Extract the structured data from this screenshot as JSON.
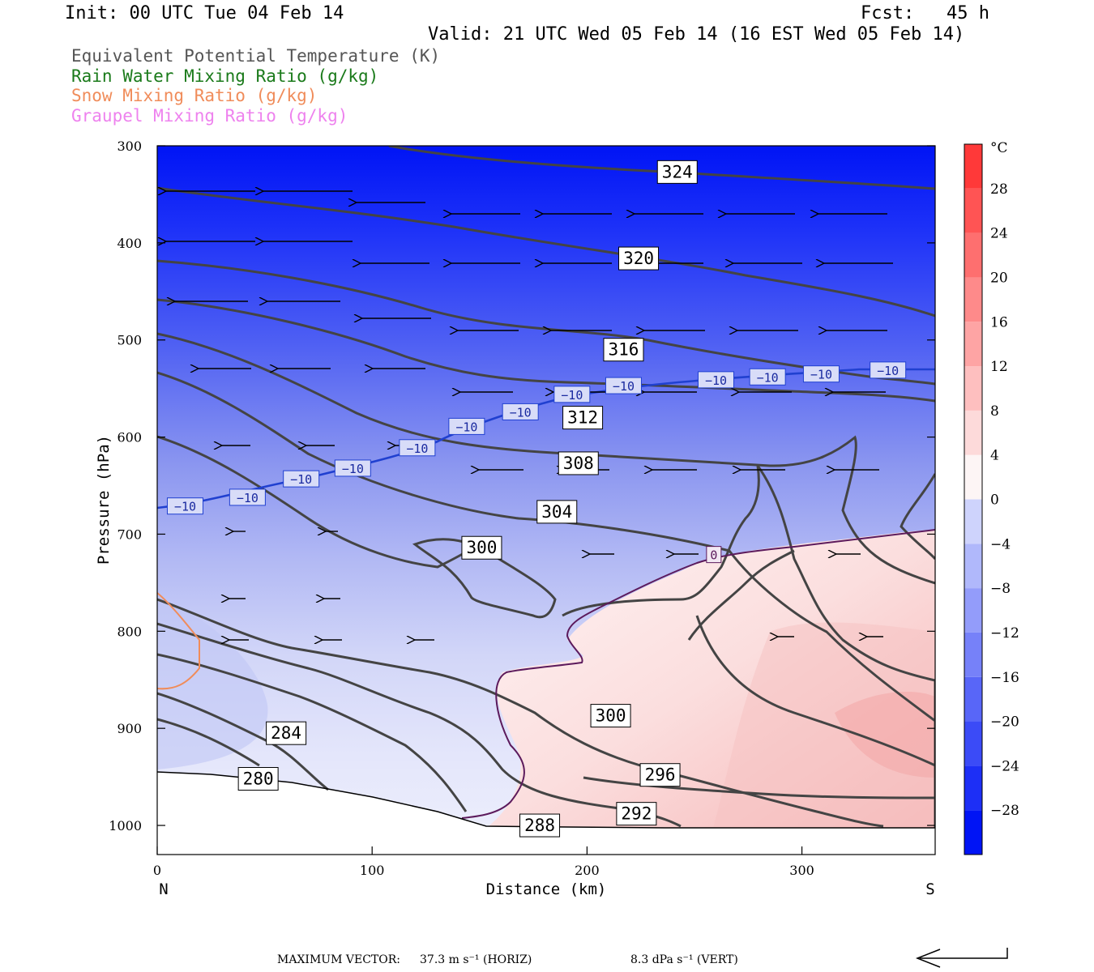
{
  "header": {
    "init": "Init: 00 UTC Tue 04 Feb 14",
    "fcst": "Fcst:   45 h",
    "valid": "Valid: 21 UTC Wed 05 Feb 14 (16 EST Wed 05 Feb 14)"
  },
  "legend": [
    {
      "label": "Equivalent Potential Temperature (K)",
      "color": "#555555"
    },
    {
      "label": "Rain Water Mixing Ratio (g/kg)",
      "color": "#1a7a1a"
    },
    {
      "label": "Snow Mixing Ratio (g/kg)",
      "color": "#f08c5a"
    },
    {
      "label": "Graupel Mixing Ratio (g/kg)",
      "color": "#ee82ee"
    }
  ],
  "chart_data": {
    "type": "cross-section",
    "xlabel": "Distance (km)",
    "ylabel": "Pressure (hPa)",
    "xlim": [
      0,
      362
    ],
    "ylim": [
      1030,
      300
    ],
    "x_ticks": [
      "0",
      "100",
      "200",
      "300"
    ],
    "y_ticks": [
      "300",
      "400",
      "500",
      "600",
      "700",
      "800",
      "900",
      "1000"
    ],
    "x_end_labels": {
      "left": "N",
      "right": "S"
    },
    "colorbar": {
      "unit": "°C",
      "tick_labels": [
        "28",
        "24",
        "20",
        "16",
        "12",
        "8",
        "4",
        "0",
        "−4",
        "−8",
        "−12",
        "−16",
        "−20",
        "−24",
        "−28"
      ],
      "range": [
        -32,
        32
      ]
    },
    "theta_e_contour_labels": [
      {
        "text": "324",
        "x": 242,
        "p": 327
      },
      {
        "text": "320",
        "x": 224,
        "p": 416
      },
      {
        "text": "316",
        "x": 217,
        "p": 510
      },
      {
        "text": "312",
        "x": 198,
        "p": 580
      },
      {
        "text": "308",
        "x": 196,
        "p": 627
      },
      {
        "text": "304",
        "x": 186,
        "p": 677
      },
      {
        "text": "300",
        "x": 151,
        "p": 714
      },
      {
        "text": "300",
        "x": 211,
        "p": 887
      },
      {
        "text": "296",
        "x": 234,
        "p": 948
      },
      {
        "text": "292",
        "x": 223,
        "p": 988
      },
      {
        "text": "288",
        "x": 178,
        "p": 1000
      },
      {
        "text": "284",
        "x": 60,
        "p": 905
      },
      {
        "text": "280",
        "x": 47,
        "p": 952
      }
    ],
    "isotherm_labels": [
      {
        "text": "−10",
        "x": 13,
        "p": 671
      },
      {
        "text": "−10",
        "x": 42,
        "p": 662
      },
      {
        "text": "−10",
        "x": 67,
        "p": 643
      },
      {
        "text": "−10",
        "x": 91,
        "p": 632
      },
      {
        "text": "−10",
        "x": 121,
        "p": 611
      },
      {
        "text": "−10",
        "x": 144,
        "p": 589
      },
      {
        "text": "−10",
        "x": 169,
        "p": 574
      },
      {
        "text": "−10",
        "x": 193,
        "p": 556
      },
      {
        "text": "−10",
        "x": 217,
        "p": 547
      },
      {
        "text": "−10",
        "x": 260,
        "p": 541
      },
      {
        "text": "−10",
        "x": 284,
        "p": 538
      },
      {
        "text": "−10",
        "x": 309,
        "p": 535
      },
      {
        "text": "−10",
        "x": 340,
        "p": 531
      },
      {
        "text": "0",
        "x": 259,
        "p": 721
      }
    ]
  },
  "footer": {
    "max_vector_label": "MAXIMUM VECTOR:",
    "horiz": "37.3 m s⁻¹ (HORIZ)",
    "vert": "8.3 dPa s⁻¹ (VERT)"
  }
}
